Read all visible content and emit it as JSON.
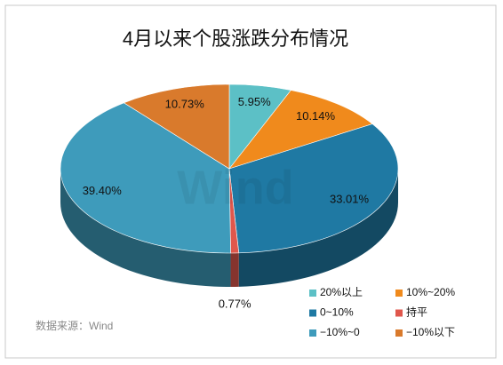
{
  "chart_data": {
    "type": "pie",
    "title": "4月以来个股涨跌分布情况",
    "categories": [
      "20%以上",
      "10%~20%",
      "0~10%",
      "持平",
      "−10%~0",
      "−10%以下"
    ],
    "values": [
      5.95,
      10.14,
      33.01,
      0.77,
      39.4,
      10.73
    ],
    "value_labels": [
      "5.95%",
      "10.14%",
      "33.01%",
      "0.77%",
      "39.40%",
      "10.73%"
    ],
    "colors": [
      "#5cc0c6",
      "#f08a1c",
      "#1f79a3",
      "#e0574c",
      "#3e9bbb",
      "#d97a2c"
    ],
    "legend": "bottom-right",
    "source": "数据来源：Wind",
    "watermark": "Wind"
  }
}
